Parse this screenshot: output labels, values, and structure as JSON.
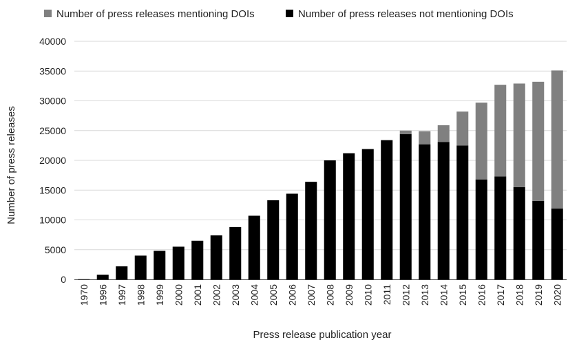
{
  "chart_data": {
    "type": "bar",
    "stacked": true,
    "title": "",
    "xlabel": "Press release publication year",
    "ylabel": "Number of press releases",
    "ylim": [
      0,
      40000
    ],
    "yticks": [
      0,
      5000,
      10000,
      15000,
      20000,
      25000,
      30000,
      35000,
      40000
    ],
    "grid": true,
    "legend_position": "top",
    "categories": [
      "1970",
      "1996",
      "1997",
      "1998",
      "1999",
      "2000",
      "2001",
      "2002",
      "2003",
      "2004",
      "2005",
      "2006",
      "2007",
      "2008",
      "2009",
      "2010",
      "2011",
      "2012",
      "2013",
      "2014",
      "2015",
      "2016",
      "2017",
      "2018",
      "2019",
      "2020"
    ],
    "series": [
      {
        "name": "Number of press releases not mentioning DOIs",
        "color": "#000000",
        "values": [
          50,
          800,
          2200,
          4000,
          4800,
          5500,
          6500,
          7400,
          8800,
          10700,
          13300,
          14400,
          16400,
          20000,
          21200,
          21900,
          23400,
          24400,
          22700,
          23100,
          22500,
          16800,
          17300,
          15500,
          13200,
          11900
        ]
      },
      {
        "name": "Number of press releases mentioning DOIs",
        "color": "#808080",
        "values": [
          0,
          0,
          0,
          0,
          0,
          0,
          0,
          0,
          0,
          0,
          0,
          0,
          0,
          0,
          0,
          0,
          0,
          600,
          2200,
          2800,
          5700,
          12900,
          15400,
          17400,
          20000,
          23200
        ]
      }
    ],
    "legend": [
      {
        "label": "Number of press releases mentioning DOIs",
        "color": "#808080"
      },
      {
        "label": "Number of press releases not mentioning DOIs",
        "color": "#000000"
      }
    ]
  }
}
